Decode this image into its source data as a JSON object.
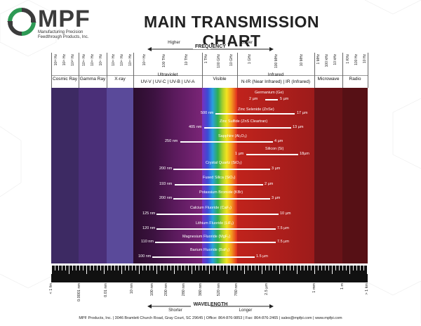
{
  "brand": {
    "name": "MPF",
    "subtitle_line1": "Manufacturing Precision",
    "subtitle_line2": "Feedthrough Products, Inc."
  },
  "title": "MAIN TRANSMISSION CHART",
  "frequency": {
    "label": "FREQUENCY",
    "higher": "Higher",
    "lower": "Lower"
  },
  "wavelength": {
    "label": "WAVELENGTH",
    "shorter": "Shorter",
    "longer": "Longer"
  },
  "top_ticks": [
    "10²¹ Hz",
    "10²⁰ Hz",
    "10¹⁹ Hz",
    "10¹⁸ Hz",
    "10¹⁷ Hz",
    "10¹⁶ Hz",
    "10¹⁵ Hz",
    "10¹⁴ Hz",
    "10¹³ Hz",
    "10¹² Hz",
    "10¹¹ Hz",
    "10¹⁰ Hz",
    "100 THz",
    "10 THz",
    "1 THz",
    "100 GHz",
    "10 GHz",
    "1 GHz",
    "100 MHz",
    "10 MHz",
    "1 MHz",
    "100 kHz",
    "10 kHz",
    "1 kHz",
    "100 Hz",
    "10 Hz"
  ],
  "top_ticks_visible": {
    "cosmic": [
      "10²² Hz",
      "10²¹ Hz",
      "10²⁰ Hz"
    ],
    "gamma": [
      "10¹⁹ Hz",
      "10¹⁸ Hz",
      "10¹⁷ Hz"
    ],
    "xray": [
      "10¹⁶ Hz",
      "10¹⁵ Hz",
      "10¹⁴ Hz"
    ],
    "uv": [
      "10¹³ Hz",
      "100 THz",
      "10 THz"
    ],
    "visible": [
      "1 THz",
      "100 GHz",
      "10 GHz"
    ],
    "ir": [
      "1 GHz",
      "100 MHz",
      "10 MHz"
    ],
    "micro": [
      "1 MHz",
      "100 kHz",
      "10 kHz"
    ],
    "radio": [
      "1 KHz",
      "100 Hz",
      "10 Hz"
    ]
  },
  "bands": {
    "cosmic": "Cosmic Ray",
    "gamma": "Gamma Ray",
    "xray": "X-ray",
    "uv": "Ultraviolet",
    "uv_sub": "UV-V | UV-C | UV-B | UV-A",
    "visible": "Visible",
    "ir": "Infrared",
    "ir_sub": "N-IR (Near Infrared) | IR (Infrared)",
    "micro": "Microwave",
    "radio": "Radio"
  },
  "materials": [
    {
      "name": "Germanium (Ge)",
      "min": "2 µm",
      "max": "5 µm"
    },
    {
      "name": "Zinc Selenide (ZnSe)",
      "min": "500 nm",
      "max": "17 µm"
    },
    {
      "name": "Zinc Sulfide (ZnS Cleartran)",
      "min": "405 nm",
      "max": "13 µm"
    },
    {
      "name": "Sapphire (Al₂O₃)",
      "min": "250 nm",
      "max": "4 µm"
    },
    {
      "name": "Silicon (Si)",
      "min": "1 µm",
      "max": "18µm"
    },
    {
      "name": "Crystal Quartz (SiO₂)",
      "min": "200 nm",
      "max": "3 µm"
    },
    {
      "name": "Fused Silica (SiO₂)",
      "min": "193 nm",
      "max": "2 µm"
    },
    {
      "name": "Potassium Bromide (KBr)",
      "min": "200 nm",
      "max": "3 µm"
    },
    {
      "name": "Calcium Fluoride (CaF₂)",
      "min": "125 nm",
      "max": "10 µm"
    },
    {
      "name": "Lithium Fluoride (LiF₂)",
      "min": "120 nm",
      "max": "7.5 µm"
    },
    {
      "name": "Magnesium Fluoride (MgF₂)",
      "min": "110 nm",
      "max": "7.5 µm"
    },
    {
      "name": "Barium Fluoride (BaF₂)",
      "min": "100 nm",
      "max": "1.5 µm"
    }
  ],
  "bottom_ticks": [
    "< 1 fm",
    "0.0001 nm",
    "0.01 nm",
    "10 nm",
    "100 nm",
    "200 nm",
    "280 nm",
    "380 nm",
    "520 nm",
    "780 nm",
    "2.5 µm",
    "1 mm",
    "1 m",
    "> 1 km"
  ],
  "footer": "MPF Products, Inc. | 3046 Bramlett Church Road, Gray Court, SC 29645 | Office: 864-876-9853 | Fax: 864-876-2465 | sales@mpfpi.com | www.mpfpi.com"
}
